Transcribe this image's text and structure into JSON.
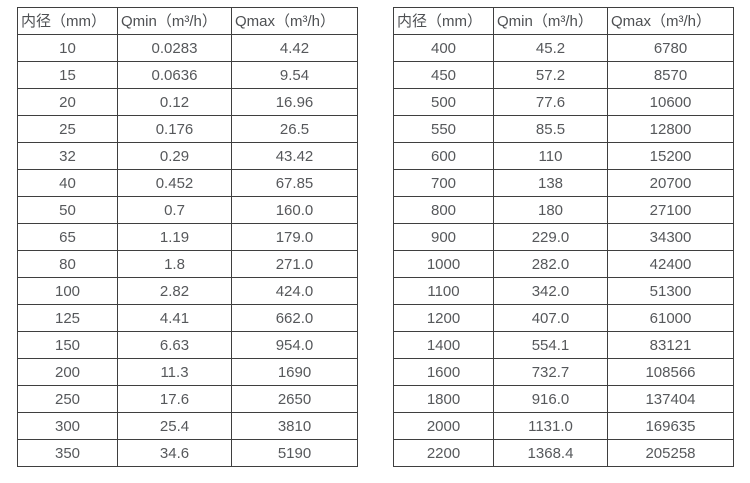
{
  "colors": {
    "background": "#ffffff",
    "table_border": "#3f3f3f",
    "cell_text": "#56585b"
  },
  "tables": [
    {
      "name": "flow-rate-table-small-diameters",
      "headers": [
        "内径（mm）",
        "Qmin（m³/h）",
        "Qmax（m³/h）"
      ],
      "rows": [
        [
          "10",
          "0.0283",
          "4.42"
        ],
        [
          "15",
          "0.0636",
          "9.54"
        ],
        [
          "20",
          "0.12",
          "16.96"
        ],
        [
          "25",
          "0.176",
          "26.5"
        ],
        [
          "32",
          "0.29",
          "43.42"
        ],
        [
          "40",
          "0.452",
          "67.85"
        ],
        [
          "50",
          "0.7",
          "160.0"
        ],
        [
          "65",
          "1.19",
          "179.0"
        ],
        [
          "80",
          "1.8",
          "271.0"
        ],
        [
          "100",
          "2.82",
          "424.0"
        ],
        [
          "125",
          "4.41",
          "662.0"
        ],
        [
          "150",
          "6.63",
          "954.0"
        ],
        [
          "200",
          "11.3",
          "1690"
        ],
        [
          "250",
          "17.6",
          "2650"
        ],
        [
          "300",
          "25.4",
          "3810"
        ],
        [
          "350",
          "34.6",
          "5190"
        ]
      ]
    },
    {
      "name": "flow-rate-table-large-diameters",
      "headers": [
        "内径（mm）",
        "Qmin（m³/h）",
        "Qmax（m³/h）"
      ],
      "rows": [
        [
          "400",
          "45.2",
          "6780"
        ],
        [
          "450",
          "57.2",
          "8570"
        ],
        [
          "500",
          "77.6",
          "10600"
        ],
        [
          "550",
          "85.5",
          "12800"
        ],
        [
          "600",
          "110",
          "15200"
        ],
        [
          "700",
          "138",
          "20700"
        ],
        [
          "800",
          "180",
          "27100"
        ],
        [
          "900",
          "229.0",
          "34300"
        ],
        [
          "1000",
          "282.0",
          "42400"
        ],
        [
          "1100",
          "342.0",
          "51300"
        ],
        [
          "1200",
          "407.0",
          "61000"
        ],
        [
          "1400",
          "554.1",
          "83121"
        ],
        [
          "1600",
          "732.7",
          "108566"
        ],
        [
          "1800",
          "916.0",
          "137404"
        ],
        [
          "2000",
          "1131.0",
          "169635"
        ],
        [
          "2200",
          "1368.4",
          "205258"
        ]
      ]
    }
  ]
}
